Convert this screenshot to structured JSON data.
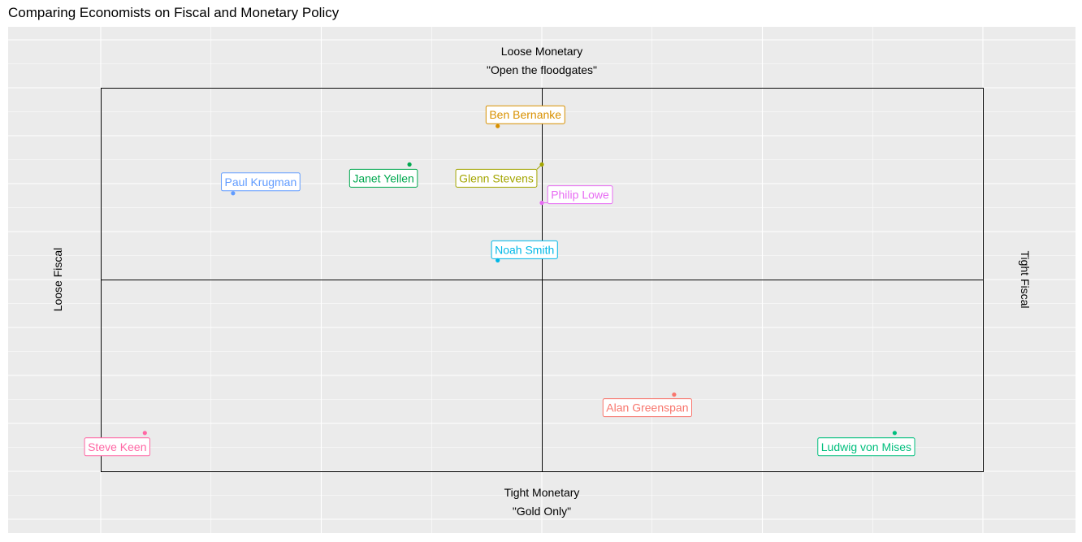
{
  "chart_data": {
    "type": "scatter",
    "title": "Comparing Economists on Fiscal and Monetary Policy",
    "quadrant_labels": {
      "top": [
        "Loose Monetary",
        "\"Open the floodgates\""
      ],
      "bottom": [
        "Tight Monetary",
        "\"Gold Only\""
      ],
      "left": "Loose Fiscal",
      "right": "Tight Fiscal"
    },
    "xlim": [
      -10,
      10
    ],
    "ylim": [
      -10,
      10
    ],
    "grid": true,
    "points": [
      {
        "name": "Ben Bernanke",
        "x": -1,
        "y": 8,
        "color": "#D89000"
      },
      {
        "name": "Glenn Stevens",
        "x": 0,
        "y": 6,
        "color": "#A3A500"
      },
      {
        "name": "Janet Yellen",
        "x": -3,
        "y": 6,
        "color": "#00A84F"
      },
      {
        "name": "Paul Krugman",
        "x": -7,
        "y": 4.5,
        "color": "#619CFF"
      },
      {
        "name": "Philip Lowe",
        "x": 0,
        "y": 4,
        "color": "#E76BF3"
      },
      {
        "name": "Noah Smith",
        "x": -1,
        "y": 1,
        "color": "#00B8E7"
      },
      {
        "name": "Alan Greenspan",
        "x": 3,
        "y": -6,
        "color": "#F8766D"
      },
      {
        "name": "Steve Keen",
        "x": -9,
        "y": -8,
        "color": "#FF67A4"
      },
      {
        "name": "Ludwig von Mises",
        "x": 8,
        "y": -8,
        "color": "#00BF7D"
      }
    ]
  }
}
